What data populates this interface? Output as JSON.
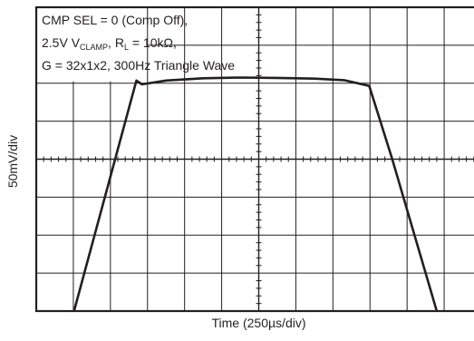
{
  "chart_data": {
    "type": "line",
    "xlabel": "Time (250µs/div)",
    "ylabel": "50mV/div",
    "x_divisions": 12,
    "y_divisions": 8,
    "xlim": [
      0,
      12
    ],
    "ylim": [
      0,
      8
    ],
    "grid": true,
    "annotation": {
      "line1": "CMP SEL = 0 (Comp Off),",
      "line2": {
        "a": "2.5V V",
        "a_sub": "CLAMP",
        "b": ", R",
        "b_sub": "L",
        "c": " = 10kΩ,"
      },
      "line3": "G = 32x1x2, 300Hz Triangle Wave"
    },
    "series": [
      {
        "x": [
          1.02,
          2.7,
          2.85,
          3.5,
          4.5,
          5.5,
          6.5,
          7.5,
          8.3,
          8.98,
          9.6,
          10.8
        ],
        "y": [
          0,
          6.07,
          5.97,
          6.07,
          6.13,
          6.15,
          6.14,
          6.12,
          6.08,
          5.93,
          4.0,
          0
        ]
      }
    ]
  }
}
